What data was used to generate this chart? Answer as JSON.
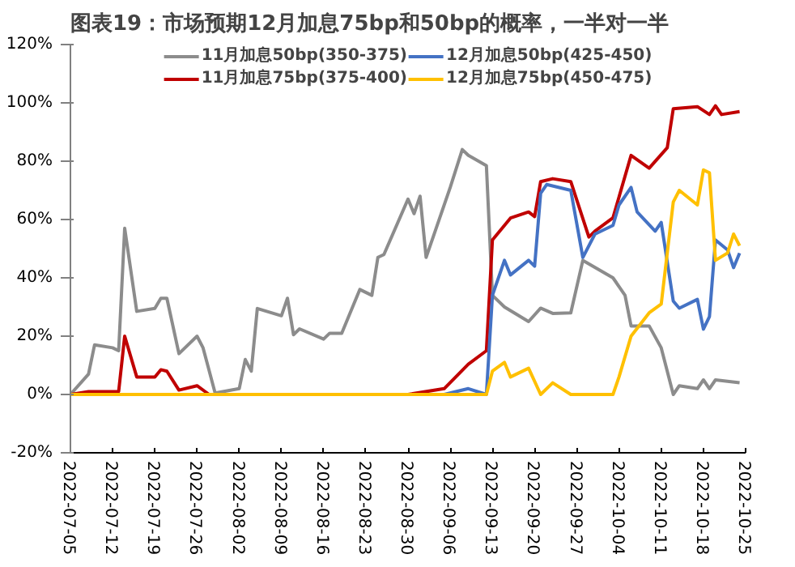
{
  "chart_data": {
    "type": "line",
    "title": "图表19：市场预期12月加息75bp和50bp的概率，一半对一半",
    "series": [
      {
        "name": "11月加息50bp(350-375)",
        "color": "#8c8c8c",
        "x": [
          "2022-07-05",
          "2022-07-08",
          "2022-07-09",
          "2022-07-12",
          "2022-07-13",
          "2022-07-14",
          "2022-07-16",
          "2022-07-19",
          "2022-07-20",
          "2022-07-21",
          "2022-07-23",
          "2022-07-26",
          "2022-07-27",
          "2022-07-29",
          "2022-08-02",
          "2022-08-03",
          "2022-08-04",
          "2022-08-05",
          "2022-08-09",
          "2022-08-10",
          "2022-08-11",
          "2022-08-12",
          "2022-08-16",
          "2022-08-17",
          "2022-08-19",
          "2022-08-22",
          "2022-08-24",
          "2022-08-25",
          "2022-08-26",
          "2022-08-30",
          "2022-08-31",
          "2022-09-01",
          "2022-09-02",
          "2022-09-06",
          "2022-09-08",
          "2022-09-09",
          "2022-09-12",
          "2022-09-13",
          "2022-09-15",
          "2022-09-19",
          "2022-09-21",
          "2022-09-23",
          "2022-09-26",
          "2022-09-28",
          "2022-10-03",
          "2022-10-05",
          "2022-10-06",
          "2022-10-09",
          "2022-10-11",
          "2022-10-13",
          "2022-10-14",
          "2022-10-17",
          "2022-10-18",
          "2022-10-19",
          "2022-10-20",
          "2022-10-24"
        ],
        "values": [
          0,
          7,
          17,
          16,
          15,
          57,
          28.5,
          29.5,
          33,
          33,
          14,
          20,
          16,
          0.5,
          2,
          12,
          8,
          29.5,
          27,
          33,
          20.5,
          22.5,
          19,
          21,
          21,
          36,
          34,
          47,
          48,
          67,
          62,
          68,
          47,
          71,
          84,
          82,
          78.5,
          34,
          30,
          25,
          29.6,
          27.8,
          28,
          46,
          40,
          34,
          23.5,
          23.5,
          16,
          0,
          3,
          2,
          5,
          2,
          5,
          4
        ]
      },
      {
        "name": "11月加息75bp(375-400)",
        "color": "#c00000",
        "x": [
          "2022-07-05",
          "2022-07-08",
          "2022-07-13",
          "2022-07-14",
          "2022-07-16",
          "2022-07-19",
          "2022-07-20",
          "2022-07-21",
          "2022-07-23",
          "2022-07-26",
          "2022-07-28",
          "2022-08-30",
          "2022-09-05",
          "2022-09-09",
          "2022-09-12",
          "2022-09-13",
          "2022-09-16",
          "2022-09-19",
          "2022-09-20",
          "2022-09-21",
          "2022-09-23",
          "2022-09-26",
          "2022-09-29",
          "2022-09-30",
          "2022-10-03",
          "2022-10-06",
          "2022-10-09",
          "2022-10-12",
          "2022-10-13",
          "2022-10-17",
          "2022-10-19",
          "2022-10-20",
          "2022-10-21",
          "2022-10-24"
        ],
        "values": [
          0,
          1,
          1,
          20,
          6,
          6,
          8.5,
          8,
          1.5,
          3,
          0,
          0,
          2,
          10.4,
          15,
          53,
          60.5,
          62.6,
          61,
          73,
          74,
          73,
          54,
          56,
          60.6,
          82,
          77.6,
          84.6,
          98,
          98.7,
          96,
          99,
          96,
          97
        ]
      },
      {
        "name": "12月加息50bp(425-450)",
        "color": "#4472c4",
        "x": [
          "2022-07-05",
          "2022-09-05",
          "2022-09-09",
          "2022-09-12",
          "2022-09-13",
          "2022-09-15",
          "2022-09-16",
          "2022-09-19",
          "2022-09-20",
          "2022-09-21",
          "2022-09-22",
          "2022-09-26",
          "2022-09-28",
          "2022-09-30",
          "2022-10-03",
          "2022-10-04",
          "2022-10-06",
          "2022-10-07",
          "2022-10-10",
          "2022-10-11",
          "2022-10-13",
          "2022-10-14",
          "2022-10-17",
          "2022-10-18",
          "2022-10-19",
          "2022-10-20",
          "2022-10-22",
          "2022-10-23",
          "2022-10-24"
        ],
        "values": [
          0,
          0,
          2,
          0,
          34,
          46,
          41,
          46,
          44,
          69,
          72,
          70,
          47,
          55,
          58,
          65,
          71,
          62.6,
          56,
          59,
          32,
          29.6,
          32.6,
          22.4,
          26.7,
          53,
          49.6,
          43.5,
          48.5
        ]
      },
      {
        "name": "12月加息75bp(450-475)",
        "color": "#ffc000",
        "x": [
          "2022-07-05",
          "2022-09-12",
          "2022-09-13",
          "2022-09-15",
          "2022-09-16",
          "2022-09-19",
          "2022-09-21",
          "2022-09-23",
          "2022-09-26",
          "2022-10-03",
          "2022-10-04",
          "2022-10-06",
          "2022-10-09",
          "2022-10-11",
          "2022-10-13",
          "2022-10-14",
          "2022-10-17",
          "2022-10-18",
          "2022-10-19",
          "2022-10-20",
          "2022-10-22",
          "2022-10-23",
          "2022-10-24"
        ],
        "values": [
          0,
          0,
          8,
          11,
          6,
          9,
          0,
          4,
          0,
          0,
          6,
          20,
          28,
          31,
          66,
          70,
          65,
          77,
          76,
          46,
          48.5,
          55,
          51
        ]
      }
    ],
    "xlim": [
      "2022-07-05",
      "2022-10-25"
    ],
    "xticks": [
      "2022-07-05",
      "2022-07-12",
      "2022-07-19",
      "2022-07-26",
      "2022-08-02",
      "2022-08-09",
      "2022-08-16",
      "2022-08-23",
      "2022-08-30",
      "2022-09-06",
      "2022-09-13",
      "2022-09-20",
      "2022-09-27",
      "2022-10-04",
      "2022-10-11",
      "2022-10-18",
      "2022-10-25"
    ],
    "ylim": [
      -20,
      120
    ],
    "yticks": [
      {
        "value": -20,
        "label": "-20%"
      },
      {
        "value": 0,
        "label": "0%"
      },
      {
        "value": 20,
        "label": "20%"
      },
      {
        "value": 40,
        "label": "40%"
      },
      {
        "value": 60,
        "label": "60%"
      },
      {
        "value": 80,
        "label": "80%"
      },
      {
        "value": 100,
        "label": "100%"
      },
      {
        "value": 120,
        "label": "120%"
      }
    ],
    "grid": false,
    "legend": "top",
    "line_style": "solid"
  }
}
